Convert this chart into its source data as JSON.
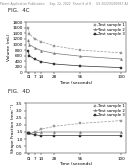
{
  "header_text": "Patent Application Publication     Sep. 22, 2022  Sheet 6 of 8     US 2022/0289957 A1",
  "fig4c_label": "FIG.  4C",
  "fig4d_label": "FIG.  4D",
  "time_points": [
    0,
    1,
    7,
    14,
    28,
    56,
    100
  ],
  "chart1": {
    "ylabel": "Volume (mL)",
    "xlabel": "Time (seconds)",
    "ylim": [
      0,
      1800
    ],
    "yticks": [
      0,
      200,
      400,
      600,
      800,
      1000,
      1200,
      1400,
      1600,
      1800
    ],
    "xticks": [
      0,
      1,
      7,
      14,
      28,
      56,
      100
    ],
    "series": [
      {
        "label": "Test sample 1",
        "values": [
          1600,
          1380,
          1200,
          1100,
          950,
          800,
          700
        ],
        "color": "#999999",
        "marker": "s",
        "linestyle": "--"
      },
      {
        "label": "Test sample 2",
        "values": [
          1150,
          1000,
          880,
          780,
          680,
          580,
          480
        ],
        "color": "#777777",
        "marker": "^",
        "linestyle": "-"
      },
      {
        "label": "Test sample 3",
        "values": [
          750,
          600,
          470,
          380,
          300,
          230,
          170
        ],
        "color": "#333333",
        "marker": "s",
        "linestyle": "-"
      }
    ]
  },
  "chart2": {
    "ylabel": "Shape Fraction (mm⁻¹)",
    "xlabel": "Time (seconds)",
    "ylim": [
      0,
      3.5
    ],
    "yticks": [
      0.0,
      0.5,
      1.0,
      1.5,
      2.0,
      2.5,
      3.0,
      3.5
    ],
    "xticks": [
      0,
      1,
      7,
      14,
      28,
      56,
      100
    ],
    "series": [
      {
        "label": "Test sample 1",
        "values": [
          1.4,
          1.4,
          1.5,
          1.7,
          1.9,
          2.1,
          2.3
        ],
        "color": "#999999",
        "marker": "s",
        "linestyle": "--"
      },
      {
        "label": "Test sample 2",
        "values": [
          1.4,
          1.4,
          1.45,
          1.5,
          1.5,
          1.5,
          1.5
        ],
        "color": "#777777",
        "marker": "^",
        "linestyle": "-"
      },
      {
        "label": "Test sample 3",
        "values": [
          1.4,
          1.4,
          1.3,
          1.25,
          1.25,
          1.25,
          1.25
        ],
        "color": "#333333",
        "marker": "s",
        "linestyle": "-"
      }
    ]
  },
  "background_color": "#ffffff",
  "header_fontsize": 2.2,
  "figlabel_fontsize": 4.0,
  "tick_fontsize": 3.0,
  "axis_label_fontsize": 3.2,
  "legend_fontsize": 2.8
}
